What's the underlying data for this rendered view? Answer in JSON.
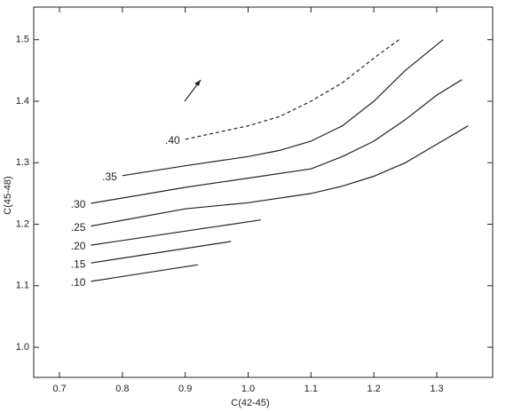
{
  "chart_data": {
    "type": "line",
    "xlabel": "C(42-45)",
    "ylabel": "C(45-48)",
    "xlim": [
      0.659,
      1.389
    ],
    "ylim": [
      0.951,
      1.553
    ],
    "xticks": [
      0.7,
      0.8,
      0.9,
      {
        "value": 1,
        "label": "1.0"
      },
      1.1,
      1.2,
      1.3
    ],
    "yticks": [
      {
        "value": 1,
        "label": "1.0"
      },
      1.1,
      1.2,
      1.3,
      1.4,
      1.5
    ],
    "series": [
      {
        "name": ".10",
        "color": "#222",
        "x": [
          0.75,
          0.92
        ],
        "values": [
          1.107,
          1.134
        ]
      },
      {
        "name": ".15",
        "color": "#222",
        "x": [
          0.75,
          0.973
        ],
        "values": [
          1.137,
          1.172
        ]
      },
      {
        "name": ".20",
        "color": "#222",
        "x": [
          0.75,
          1.02
        ],
        "values": [
          1.166,
          1.207
        ]
      },
      {
        "name": ".25",
        "color": "#222",
        "x": [
          0.75,
          0.9,
          1.0,
          1.1,
          1.15,
          1.2,
          1.25,
          1.3,
          1.35
        ],
        "values": [
          1.197,
          1.225,
          1.235,
          1.25,
          1.262,
          1.278,
          1.3,
          1.33,
          1.36
        ]
      },
      {
        "name": ".30",
        "color": "#222",
        "x": [
          0.75,
          0.9,
          1.0,
          1.1,
          1.15,
          1.2,
          1.25,
          1.3,
          1.34
        ],
        "values": [
          1.234,
          1.26,
          1.275,
          1.29,
          1.31,
          1.335,
          1.37,
          1.41,
          1.435
        ]
      },
      {
        "name": ".35",
        "color": "#222",
        "x": [
          0.8,
          0.9,
          1.0,
          1.05,
          1.1,
          1.15,
          1.2,
          1.25,
          1.31
        ],
        "values": [
          1.279,
          1.295,
          1.31,
          1.32,
          1.335,
          1.36,
          1.4,
          1.45,
          1.5
        ]
      },
      {
        "name": ".40",
        "color": "#222",
        "dashed": true,
        "x": [
          0.9,
          1.0,
          1.05,
          1.1,
          1.15,
          1.2,
          1.24
        ],
        "values": [
          1.338,
          1.36,
          1.375,
          1.4,
          1.43,
          1.47,
          1.5
        ]
      }
    ]
  }
}
